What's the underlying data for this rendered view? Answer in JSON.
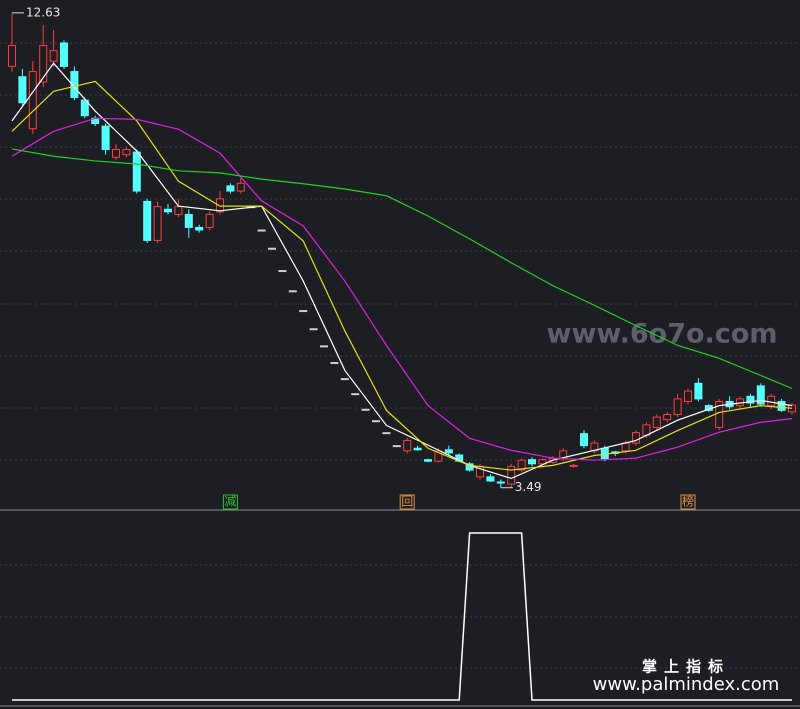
{
  "chart_data": {
    "type": "candlestick",
    "open": [
      11.6,
      11.4,
      10.4,
      11.3,
      11.7,
      12.05,
      11.5,
      10.95,
      10.6,
      10.45,
      9.85,
      9.9,
      9.95,
      9.0,
      8.25,
      8.85,
      8.75,
      8.75,
      8.5,
      8.5,
      8.8,
      9.3,
      9.2,
      8.9,
      8.45,
      8.1,
      7.67,
      7.28,
      6.9,
      6.55,
      6.22,
      5.9,
      5.59,
      5.3,
      5.0,
      4.78,
      4.55,
      4.3,
      4.2,
      4.25,
      4.03,
      4.0,
      4.22,
      4.12,
      3.95,
      3.7,
      3.7,
      3.6,
      3.56,
      3.83,
      4.03,
      3.95,
      3.98,
      4.05,
      3.9,
      4.53,
      4.2,
      4.25,
      4.18,
      4.2,
      4.35,
      4.5,
      4.65,
      4.8,
      4.9,
      5.15,
      5.5,
      5.07,
      4.65,
      5.15,
      5.07,
      5.25,
      5.45,
      5.07,
      5.15,
      4.95
    ],
    "high": [
      12.63,
      11.55,
      11.7,
      12.4,
      12.3,
      12.1,
      11.6,
      11.0,
      10.65,
      10.5,
      10.1,
      10.05,
      10.0,
      9.05,
      9.0,
      8.95,
      9.05,
      8.85,
      8.55,
      8.8,
      9.2,
      9.35,
      9.45,
      8.9,
      8.45,
      8.1,
      7.67,
      7.28,
      6.9,
      6.55,
      6.22,
      5.9,
      5.59,
      5.3,
      5.0,
      4.78,
      4.55,
      4.3,
      4.45,
      4.3,
      4.05,
      4.25,
      4.3,
      4.15,
      3.98,
      3.95,
      3.75,
      3.65,
      3.95,
      4.05,
      4.08,
      4.06,
      4.1,
      4.25,
      3.95,
      4.6,
      4.4,
      4.3,
      4.2,
      4.4,
      4.6,
      4.75,
      4.9,
      4.95,
      5.3,
      5.4,
      5.6,
      5.1,
      5.2,
      5.25,
      5.25,
      5.3,
      5.5,
      5.3,
      5.2,
      5.12
    ],
    "low": [
      11.5,
      10.85,
      10.3,
      11.2,
      11.6,
      11.55,
      10.95,
      10.6,
      10.45,
      9.9,
      9.8,
      9.85,
      9.15,
      8.2,
      8.2,
      8.75,
      8.7,
      8.3,
      8.4,
      8.45,
      8.75,
      9.15,
      9.15,
      8.9,
      8.45,
      8.1,
      7.67,
      7.28,
      6.9,
      6.55,
      6.22,
      5.9,
      5.59,
      5.3,
      5.0,
      4.78,
      4.55,
      4.3,
      4.15,
      4.2,
      3.98,
      3.98,
      4.12,
      3.98,
      3.8,
      3.65,
      3.6,
      3.49,
      3.5,
      3.8,
      3.9,
      3.92,
      3.95,
      4.0,
      3.88,
      4.25,
      4.15,
      4.0,
      4.1,
      4.15,
      4.3,
      4.45,
      4.6,
      4.75,
      4.85,
      5.1,
      5.15,
      4.95,
      4.6,
      5.0,
      5.0,
      5.05,
      5.05,
      5.0,
      4.95,
      4.9
    ],
    "close": [
      12.0,
      10.9,
      11.5,
      12.0,
      11.9,
      11.6,
      11.0,
      10.65,
      10.5,
      10.0,
      10.0,
      10.0,
      9.2,
      8.25,
      8.9,
      8.8,
      8.9,
      8.5,
      8.45,
      8.75,
      9.05,
      9.2,
      9.35,
      8.9,
      8.45,
      8.1,
      7.67,
      7.28,
      6.9,
      6.55,
      6.22,
      5.9,
      5.59,
      5.3,
      5.0,
      4.78,
      4.55,
      4.3,
      4.4,
      4.22,
      4.0,
      4.2,
      4.16,
      4.0,
      3.83,
      3.9,
      3.62,
      3.58,
      3.9,
      4.02,
      3.95,
      4.03,
      4.05,
      4.2,
      3.92,
      4.3,
      4.35,
      4.05,
      4.15,
      4.35,
      4.55,
      4.7,
      4.85,
      4.9,
      5.2,
      5.35,
      5.2,
      4.98,
      5.15,
      5.05,
      5.2,
      5.12,
      5.1,
      5.25,
      4.98,
      5.08
    ],
    "up_color": "#ff3c3c",
    "down_color": "#54ffff",
    "flat_color": "#d0d0d0",
    "ylim": [
      3.1,
      12.8
    ],
    "max_label": 12.63,
    "min_label": 3.49,
    "ma_x": [
      0,
      4,
      8,
      12,
      16,
      20,
      24,
      28,
      32,
      36,
      40,
      44,
      48,
      52,
      56,
      60,
      64,
      68,
      72,
      75
    ],
    "series": [
      {
        "color": "#ffffff",
        "values": [
          10.55,
          11.66,
          10.74,
          9.97,
          8.91,
          8.82,
          8.91,
          7.47,
          5.75,
          4.69,
          4.31,
          3.92,
          3.67,
          4.02,
          4.21,
          4.4,
          4.79,
          5.07,
          5.17,
          5.07
        ]
      },
      {
        "color": "#e8e000",
        "values": [
          10.35,
          11.12,
          11.31,
          10.55,
          9.39,
          8.91,
          8.91,
          8.24,
          6.51,
          4.98,
          4.25,
          3.92,
          3.83,
          3.92,
          4.11,
          4.21,
          4.59,
          4.94,
          5.07,
          5.02
        ]
      },
      {
        "color": "#e020e0",
        "values": [
          9.87,
          10.35,
          10.6,
          10.58,
          10.39,
          9.93,
          9.01,
          8.53,
          7.47,
          6.23,
          5.07,
          4.44,
          4.21,
          4.06,
          4.02,
          4.06,
          4.27,
          4.56,
          4.75,
          4.82
        ]
      },
      {
        "color": "#20d020",
        "values": [
          10.01,
          9.87,
          9.78,
          9.72,
          9.59,
          9.55,
          9.43,
          9.34,
          9.24,
          9.11,
          8.72,
          8.28,
          7.82,
          7.38,
          7.0,
          6.61,
          6.23,
          5.98,
          5.65,
          5.4
        ]
      }
    ],
    "signals": [
      {
        "text": "减",
        "index": 21,
        "color": "#30c030"
      },
      {
        "text": "回",
        "index": 38,
        "color": "#e09040"
      },
      {
        "text": "榜",
        "index": 65,
        "color": "#e09040"
      }
    ],
    "indicator": {
      "color": "#ffffff",
      "ylim": [
        0,
        1
      ],
      "values": [
        0,
        0,
        0,
        0,
        0,
        0,
        0,
        0,
        0,
        0,
        0,
        0,
        0,
        0,
        0,
        0,
        0,
        0,
        0,
        0,
        0,
        0,
        0,
        0,
        0,
        0,
        0,
        0,
        0,
        0,
        0,
        0,
        0,
        0,
        0,
        0,
        0,
        0,
        0,
        0,
        0,
        0,
        0,
        0,
        1,
        1,
        1,
        1,
        1,
        1,
        0,
        0,
        0,
        0,
        0,
        0,
        0,
        0,
        0,
        0,
        0,
        0,
        0,
        0,
        0,
        0,
        0,
        0,
        0,
        0,
        0,
        0,
        0,
        0,
        0,
        0
      ]
    }
  },
  "watermarks": [
    "www.6o7o.com",
    "掌上指标",
    "www.palmindex.com"
  ]
}
